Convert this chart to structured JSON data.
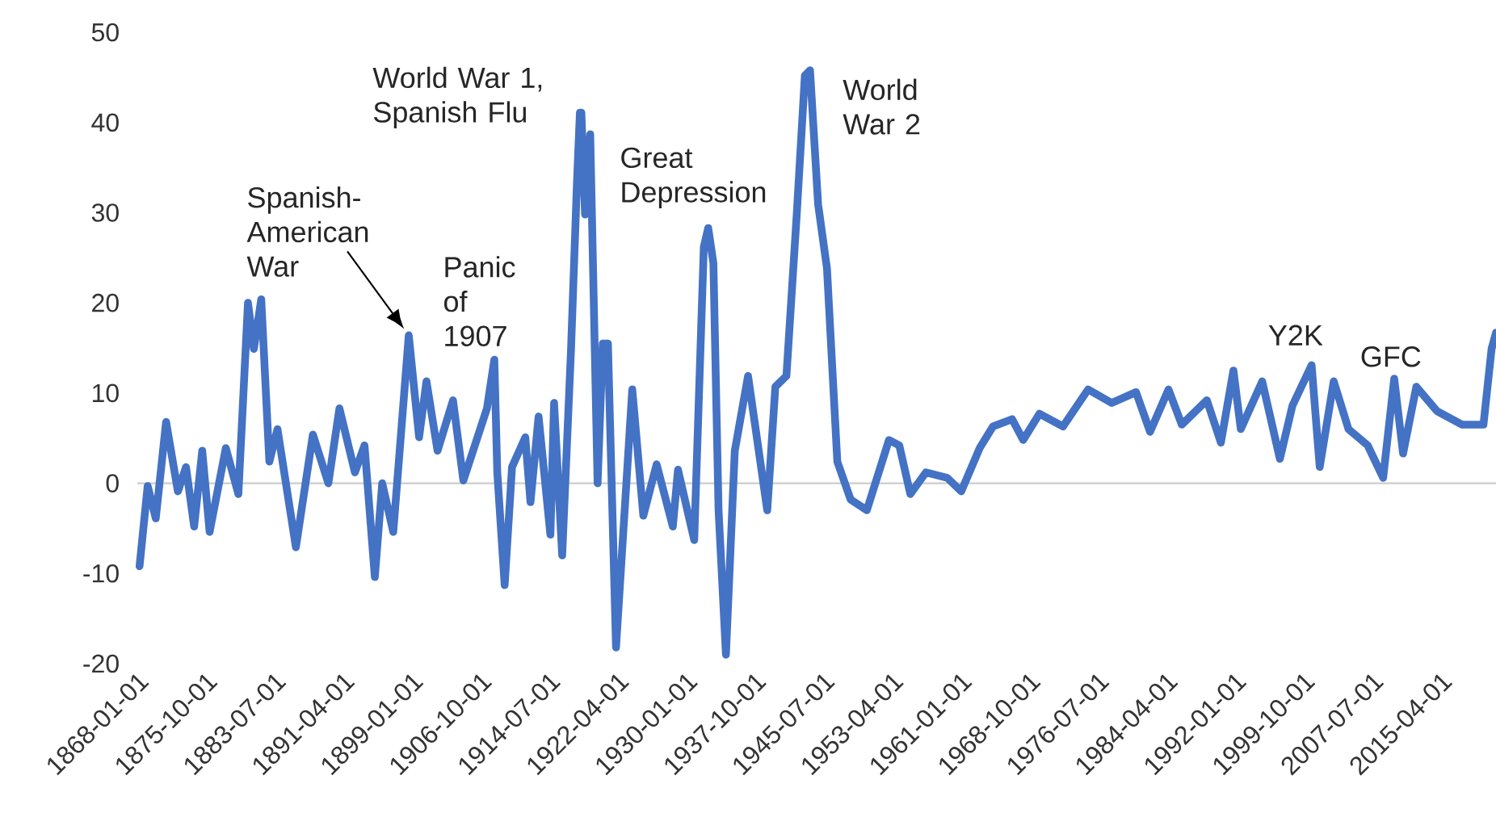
{
  "chart_data": {
    "type": "line",
    "x": [
      "1868-04",
      "1869-03",
      "1870-02",
      "1871-04",
      "1872-08",
      "1873-07",
      "1874-06",
      "1875-05",
      "1876-03",
      "1878-01",
      "1879-06",
      "1880-07",
      "1881-03",
      "1882-01",
      "1882-12",
      "1883-11",
      "1885-12",
      "1887-11",
      "1889-08",
      "1890-11",
      "1892-08",
      "1893-09",
      "1894-11",
      "1895-09",
      "1896-12",
      "1898-09",
      "1899-11",
      "1900-09",
      "1901-12",
      "1903-09",
      "1904-11",
      "1907-07",
      "1908-05",
      "1908-09",
      "1909-07",
      "1910-05",
      "1911-11",
      "1912-06",
      "1913-05",
      "1914-09",
      "1915-02",
      "1916-01",
      "1917-01",
      "1917-09",
      "1918-01",
      "1918-03",
      "1918-08",
      "1919-03",
      "1920-01",
      "1920-08",
      "1921-03",
      "1922-02",
      "1923-12",
      "1925-03",
      "1926-09",
      "1928-07",
      "1929-02",
      "1930-12",
      "1932-01",
      "1932-07",
      "1933-02",
      "1933-09",
      "1934-07",
      "1935-07",
      "1937-01",
      "1939-03",
      "1940-02",
      "1941-05",
      "1942-07",
      "1943-06",
      "1944-01",
      "1944-12",
      "1945-12",
      "1947-02",
      "1948-08",
      "1950-06",
      "1952-12",
      "1954-02",
      "1955-05",
      "1957-02",
      "1959-07",
      "1961-02",
      "1963-03",
      "1964-09",
      "1966-11",
      "1968-02",
      "1969-12",
      "1972-08",
      "1975-06",
      "1978-02",
      "1980-11",
      "1982-06",
      "1984-07",
      "1986-01",
      "1988-11",
      "1990-06",
      "1991-11",
      "1992-09",
      "1995-02",
      "1997-02",
      "1998-07",
      "2000-09",
      "2001-08",
      "2003-03",
      "2004-11",
      "2007-01",
      "2008-10",
      "2010-01",
      "2011-01",
      "2012-07",
      "2014-11",
      "2017-09",
      "2020-02",
      "2021-01",
      "2021-07"
    ],
    "series": [
      {
        "color": "#4472c4",
        "values": [
          -9.2,
          -0.3,
          -3.9,
          6.8,
          -0.9,
          1.8,
          -4.8,
          3.6,
          -5.4,
          3.9,
          -1.2,
          20.0,
          14.9,
          20.4,
          2.4,
          6.0,
          -7.1,
          5.4,
          0,
          8.3,
          1.2,
          4.2,
          -10.4,
          0,
          -5.4,
          16.4,
          5.1,
          11.3,
          3.6,
          9.2,
          0.3,
          8.3,
          13.7,
          1.2,
          -11.3,
          1.8,
          5.1,
          -2.1,
          7.4,
          -5.7,
          8.9,
          -8.0,
          14.9,
          33.3,
          41.1,
          41.1,
          29.8,
          38.7,
          0,
          15.5,
          15.5,
          -18.2,
          10.4,
          -3.6,
          2.1,
          -4.8,
          1.5,
          -6.3,
          26.2,
          28.3,
          24.4,
          -3.0,
          -19.0,
          3.6,
          11.9,
          -3.0,
          10.7,
          11.9,
          29.8,
          45.2,
          45.8,
          30.9,
          23.8,
          2.4,
          -1.8,
          -3.0,
          4.8,
          4.2,
          -1.2,
          1.2,
          0.6,
          -0.9,
          3.9,
          6.3,
          7.1,
          4.8,
          7.7,
          6.3,
          10.4,
          8.9,
          10.1,
          5.7,
          10.4,
          6.5,
          9.2,
          4.5,
          12.5,
          6.0,
          11.3,
          2.7,
          8.6,
          13.1,
          1.8,
          11.3,
          6.0,
          4.2,
          0.6,
          11.6,
          3.3,
          10.7,
          8.0,
          6.5,
          6.5,
          14.9,
          16.7
        ]
      }
    ],
    "xlim": [
      "1868-01-01",
      "2021-07-01"
    ],
    "xticks": [
      "1868-01-01",
      "1875-10-01",
      "1883-07-01",
      "1891-04-01",
      "1899-01-01",
      "1906-10-01",
      "1914-07-01",
      "1922-04-01",
      "1930-01-01",
      "1937-10-01",
      "1945-07-01",
      "1953-04-01",
      "1961-01-01",
      "1968-10-01",
      "1976-07-01",
      "1984-04-01",
      "1992-01-01",
      "1999-10-01",
      "2007-07-01",
      "2015-04-01"
    ],
    "ylim": [
      -20,
      50
    ],
    "yticks": [
      -20,
      -10,
      0,
      10,
      20,
      30,
      40,
      50
    ],
    "annotations": [
      {
        "text": "Spanish-American War",
        "x": "1898-09",
        "y": 16.4
      },
      {
        "text": "Panic of 1907",
        "x": "1908-05",
        "y": 13.7
      },
      {
        "text": "World War 1, Spanish Flu",
        "x": "1918-01",
        "y": 41.1
      },
      {
        "text": "Great Depression",
        "x": "1932-07",
        "y": 28.3
      },
      {
        "text": "World War 2",
        "x": "1944-01",
        "y": 45.8
      },
      {
        "text": "Y2K",
        "x": "2000-09",
        "y": 13.1
      },
      {
        "text": "GFC",
        "x": "2010-01",
        "y": 11.6
      }
    ]
  }
}
